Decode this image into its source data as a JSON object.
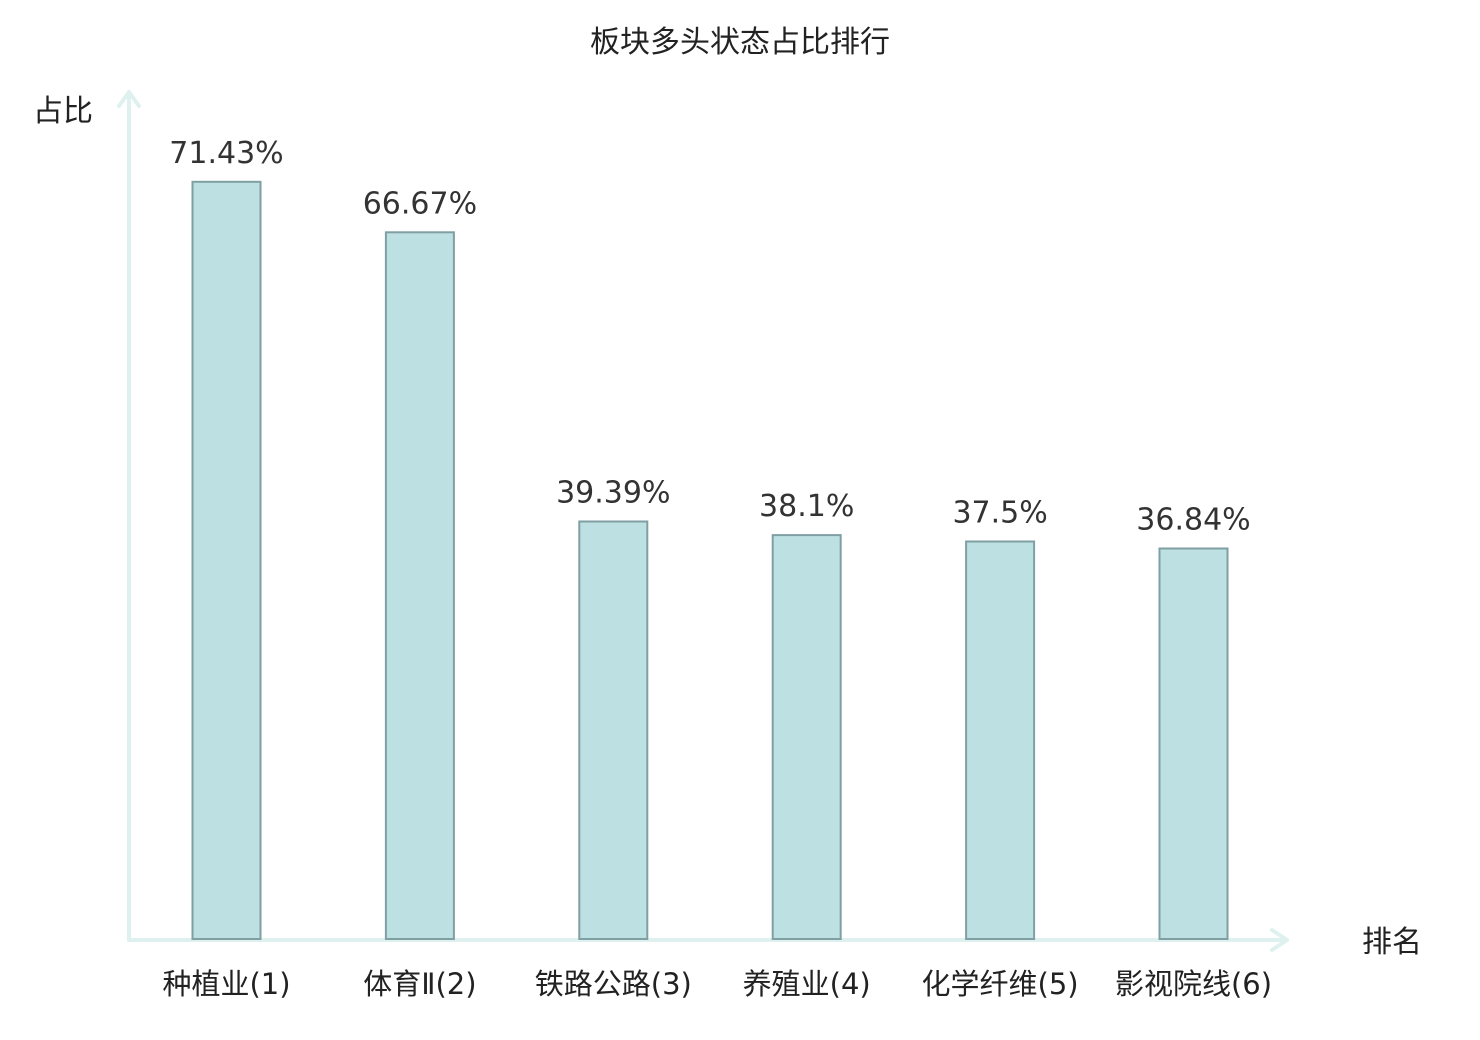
{
  "chart_data": {
    "type": "bar",
    "title": "板块多头状态占比排行",
    "ylabel": "占比",
    "xlabel": "排名",
    "categories": [
      "种植业",
      "体育Ⅱ",
      "铁路公路",
      "养殖业",
      "化学纤维",
      "影视院线"
    ],
    "ranks": [
      "(1)",
      "(2)",
      "(3)",
      "(4)",
      "(5)",
      "(6)"
    ],
    "values": [
      71.43,
      66.67,
      39.39,
      38.1,
      37.5,
      36.84
    ],
    "value_labels": [
      "71.43%",
      "66.67%",
      "39.39%",
      "38.1%",
      "37.5%",
      "36.84%"
    ],
    "highlight_index": 5,
    "ylim": [
      0,
      80
    ],
    "grid": false,
    "legend": "none",
    "colors": {
      "bar_fill": "#bde0e3",
      "bar_stroke": "#7f9fa3",
      "axis": "#dff1ef",
      "label_text": "#222222",
      "value_text": "#333333",
      "highlight_text": "#cc0000"
    }
  }
}
